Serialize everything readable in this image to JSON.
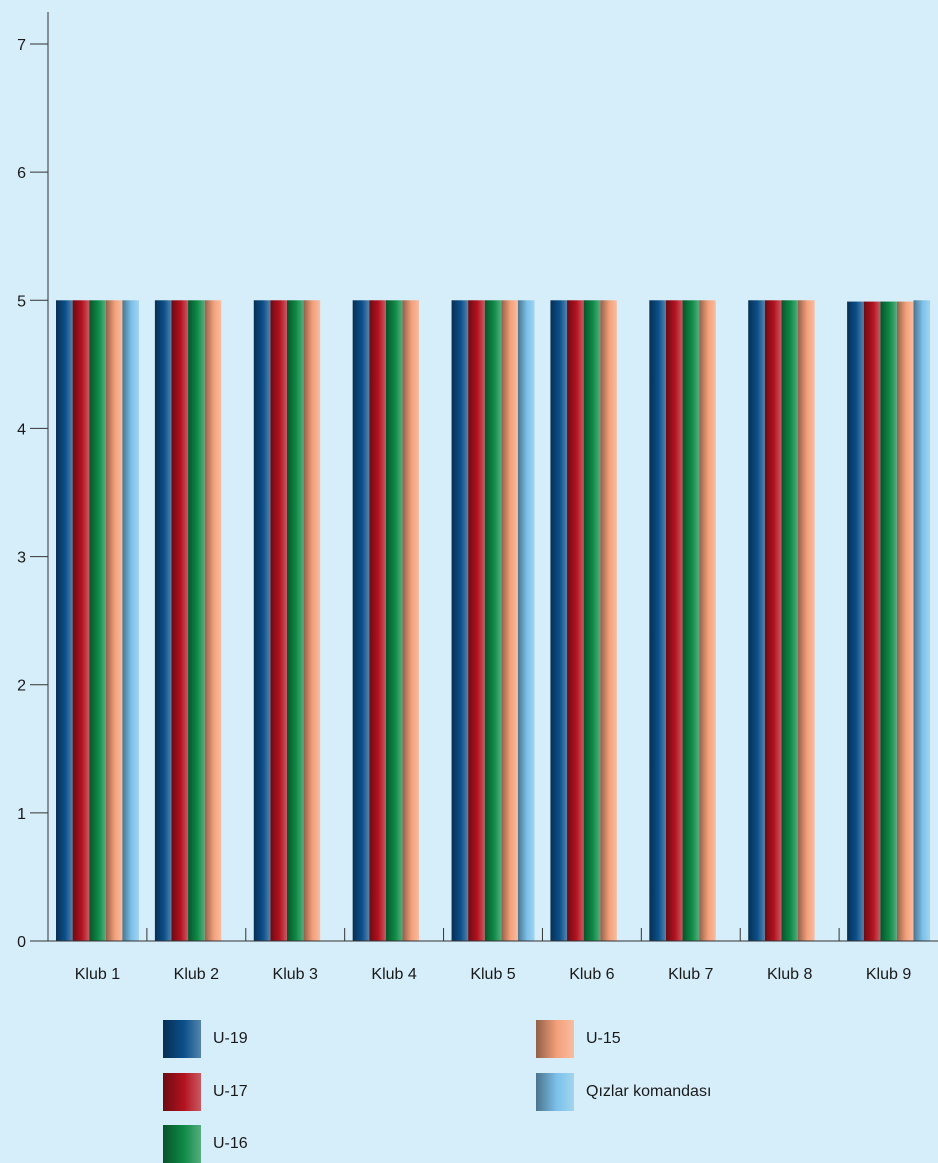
{
  "chart_data": {
    "type": "bar",
    "categories": [
      "Klub 1",
      "Klub 2",
      "Klub 3",
      "Klub 4",
      "Klub 5",
      "Klub 6",
      "Klub 7",
      "Klub 8",
      "Klub 9"
    ],
    "series": [
      {
        "name": "U-19",
        "color": "#0b4f8a",
        "values": [
          5,
          5,
          5,
          5,
          5,
          5,
          5,
          5,
          4.99
        ]
      },
      {
        "name": "U-17",
        "color": "#b3121f",
        "values": [
          5,
          5,
          5,
          5,
          5,
          5,
          5,
          5,
          4.99
        ]
      },
      {
        "name": "U-16",
        "color": "#0e8a46",
        "values": [
          5,
          5,
          5,
          5,
          5,
          5,
          5,
          5,
          4.99
        ]
      },
      {
        "name": "U-15",
        "color": "#f4a07a",
        "values": [
          5,
          5,
          5,
          5,
          5,
          5,
          5,
          5,
          4.99
        ]
      },
      {
        "name": "Qızlar komandası",
        "color": "#7cc1ea",
        "values": [
          5,
          null,
          null,
          null,
          5,
          null,
          null,
          null,
          5
        ]
      }
    ],
    "ylim": [
      0,
      7
    ],
    "yticks": [
      "0",
      "1",
      "2",
      "3",
      "4",
      "5",
      "6",
      "7"
    ],
    "title": "",
    "xlabel": "",
    "ylabel": "",
    "grid": false,
    "legend_position": "bottom"
  }
}
